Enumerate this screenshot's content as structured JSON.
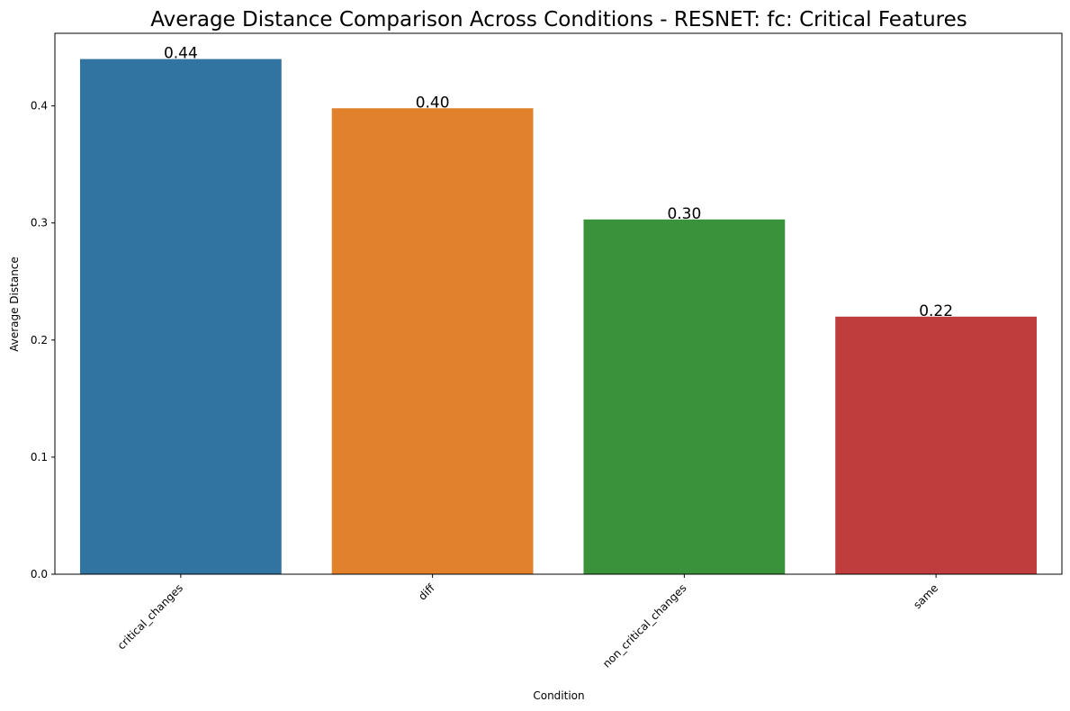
{
  "chart_data": {
    "type": "bar",
    "title": "Average Distance Comparison Across Conditions - RESNET: fc: Critical Features",
    "xlabel": "Condition",
    "ylabel": "Average Distance",
    "categories": [
      "critical_changes",
      "diff",
      "non_critical_changes",
      "same"
    ],
    "values": [
      0.44,
      0.398,
      0.303,
      0.22
    ],
    "data_labels": [
      "0.44",
      "0.40",
      "0.30",
      "0.22"
    ],
    "colors": [
      "#3274a1",
      "#e1812c",
      "#3a923a",
      "#c03d3e"
    ],
    "ylim": [
      0,
      0.462
    ],
    "yticks": [
      0.0,
      0.1,
      0.2,
      0.3,
      0.4
    ],
    "ytick_labels": [
      "0.0",
      "0.1",
      "0.2",
      "0.3",
      "0.4"
    ],
    "grid": false,
    "legend": "none"
  }
}
